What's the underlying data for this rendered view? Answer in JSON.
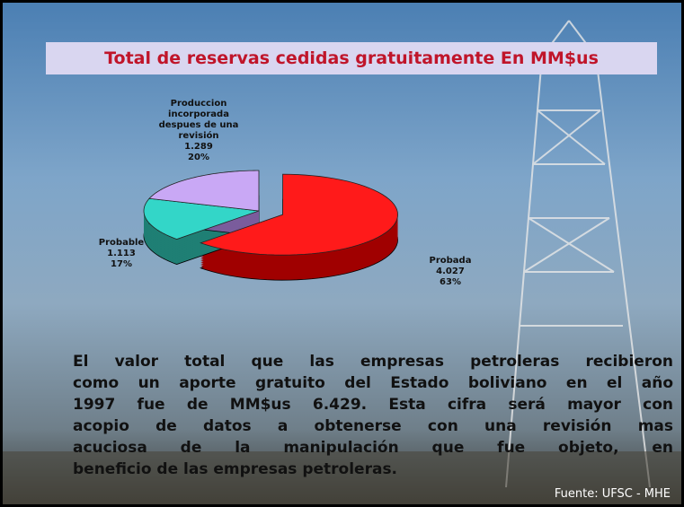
{
  "chart_data": {
    "type": "pie3d",
    "title": "Total de reservas cedidas gratuitamente En MM$us",
    "categories": [
      "Probada",
      "Probable",
      "Produccion incorporada despues de una revisión"
    ],
    "values": [
      4027,
      1113,
      1289
    ],
    "value_labels": [
      "4.027",
      "1.113",
      "1.289"
    ],
    "percents": [
      63,
      17,
      20
    ],
    "percent_labels": [
      "63%",
      "17%",
      "20%"
    ],
    "colors": [
      "#ff1a1a",
      "#33d6c8",
      "#c9a8f5"
    ],
    "side_colors": [
      "#a00000",
      "#1f7f74",
      "#7a5c9c"
    ],
    "exploded": [
      true,
      false,
      false
    ]
  },
  "body_lines": [
    "El valor total que las empresas petroleras recibieron",
    "como un aporte gratuito del Estado boliviano en el año",
    "1997 fue de MM$us 6.429.  Esta cifra será mayor con",
    "acopio de datos a obtenerse con una revisión mas",
    "acuciosa de la manipulación que fue objeto, en",
    "beneficio de las empresas petroleras."
  ],
  "source": "Fuente: UFSC - MHE"
}
